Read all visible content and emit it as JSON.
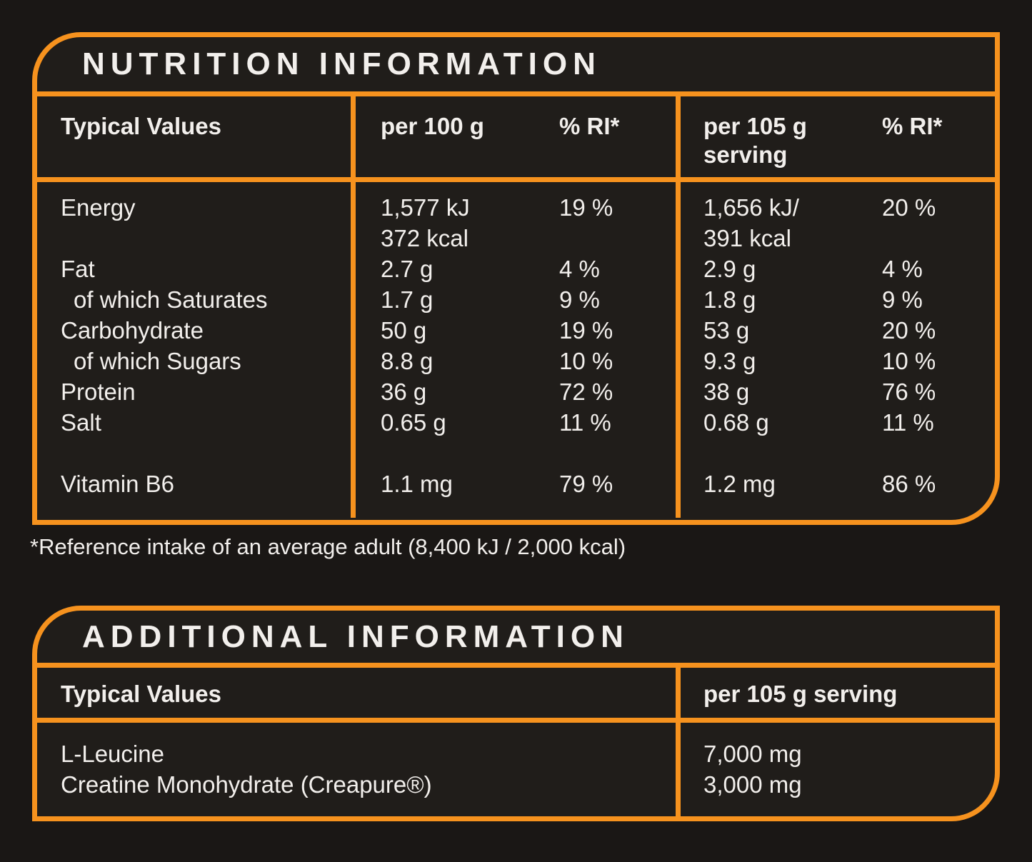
{
  "colors": {
    "accent": "#F6921E",
    "background": "#1A1715",
    "panel": "#201D1A",
    "text": "#F2EFEC"
  },
  "nutrition": {
    "title": "NUTRITION INFORMATION",
    "header": {
      "col_label": "Typical Values",
      "col_per100": "per 100 g",
      "col_ri100": "% RI*",
      "col_per105": "per 105 g serving",
      "col_ri105": "% RI*"
    },
    "rows": [
      {
        "label": "Energy",
        "per100": "1,577 kJ\n372 kcal",
        "ri100": "19 %",
        "per105": "1,656 kJ/\n391 kcal",
        "ri105": "20 %"
      },
      {
        "label": "Fat",
        "per100": "2.7 g",
        "ri100": "4 %",
        "per105": "2.9 g",
        "ri105": "4 %"
      },
      {
        "label": "of which Saturates",
        "per100": "1.7 g",
        "ri100": "9 %",
        "per105": "1.8 g",
        "ri105": "9 %"
      },
      {
        "label": "Carbohydrate",
        "per100": "50 g",
        "ri100": "19 %",
        "per105": "53 g",
        "ri105": "20 %"
      },
      {
        "label": "of which Sugars",
        "per100": "8.8 g",
        "ri100": "10 %",
        "per105": "9.3 g",
        "ri105": "10 %"
      },
      {
        "label": "Protein",
        "per100": "36 g",
        "ri100": "72 %",
        "per105": "38 g",
        "ri105": "76 %"
      },
      {
        "label": "Salt",
        "per100": "0.65 g",
        "ri100": "11 %",
        "per105": "0.68 g",
        "ri105": "11 %"
      },
      {
        "label": "Vitamin B6",
        "per100": "1.1 mg",
        "ri100": "79 %",
        "per105": "1.2 mg",
        "ri105": "86 %"
      }
    ],
    "footnote": "*Reference intake of an average adult (8,400 kJ / 2,000 kcal)"
  },
  "additional": {
    "title": "ADDITIONAL INFORMATION",
    "header": {
      "col_label": "Typical Values",
      "col_per105": "per 105 g serving"
    },
    "rows": [
      {
        "label": "L-Leucine",
        "value": "7,000 mg"
      },
      {
        "label": "Creatine Monohydrate (Creapure®)",
        "value": "3,000 mg"
      }
    ]
  }
}
